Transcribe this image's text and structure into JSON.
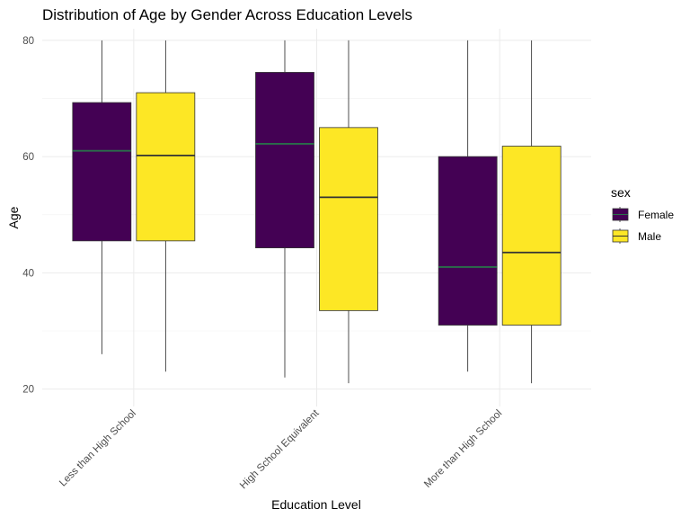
{
  "chart_data": {
    "type": "boxplot",
    "title": "Distribution of Age by Gender Across Education Levels",
    "xlabel": "Education Level",
    "ylabel": "Age",
    "ylim": [
      17,
      82
    ],
    "yticks": [
      20,
      40,
      60,
      80
    ],
    "grid": true,
    "legend": {
      "title": "sex",
      "position": "right"
    },
    "categories": [
      "Less than High School",
      "High School Equivalent",
      "More than High School"
    ],
    "series": [
      {
        "name": "Female",
        "color": "#440154",
        "boxes": [
          {
            "min": 26,
            "q1": 45.5,
            "median": 61,
            "q3": 69.3,
            "max": 80
          },
          {
            "min": 22,
            "q1": 44.3,
            "median": 62.2,
            "q3": 74.5,
            "max": 80
          },
          {
            "min": 23,
            "q1": 31,
            "median": 41,
            "q3": 60,
            "max": 80
          }
        ]
      },
      {
        "name": "Male",
        "color": "#FDE725",
        "boxes": [
          {
            "min": 23,
            "q1": 45.5,
            "median": 60.2,
            "q3": 71,
            "max": 80
          },
          {
            "min": 21,
            "q1": 33.5,
            "median": 53,
            "q3": 65,
            "max": 80
          },
          {
            "min": 21,
            "q1": 31,
            "median": 43.5,
            "q3": 61.8,
            "max": 80
          }
        ]
      }
    ]
  }
}
